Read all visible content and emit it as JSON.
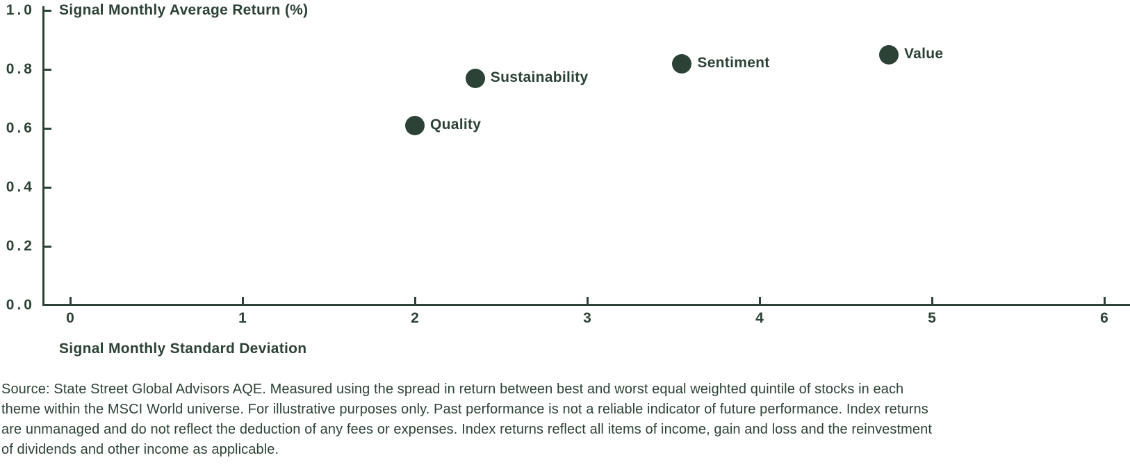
{
  "chart_data": {
    "type": "scatter",
    "title": "",
    "xlabel": "Signal Monthly Standard Deviation",
    "ylabel": "Signal Monthly Average Return (%)",
    "xlim": [
      0,
      6
    ],
    "ylim": [
      0.0,
      1.0
    ],
    "x_ticks": [
      "0",
      "1",
      "2",
      "3",
      "4",
      "5",
      "6"
    ],
    "y_ticks": [
      "0.0",
      "0.2",
      "0.4",
      "0.6",
      "0.8",
      "1.0"
    ],
    "grid": false,
    "legend_position": "none (points labeled inline next to markers)",
    "points": [
      {
        "label": "Quality",
        "x": 2.0,
        "y": 0.61
      },
      {
        "label": "Sustainability",
        "x": 2.35,
        "y": 0.77
      },
      {
        "label": "Sentiment",
        "x": 3.55,
        "y": 0.82
      },
      {
        "label": "Value",
        "x": 4.75,
        "y": 0.85
      }
    ],
    "point_color": "#2C4236"
  },
  "colors": {
    "ink": "#2C4236",
    "background": "#FFFFFF"
  },
  "source": {
    "lines": [
      "Source: State Street Global Advisors AQE. Measured using the spread in return between best and worst equal weighted quintile of stocks in each",
      "theme within the MSCI World universe. For illustrative purposes only. Past performance is not a reliable indicator of future performance. Index returns",
      "are unmanaged and do not reflect the deduction of any fees or expenses. Index returns reflect all items of income, gain and loss and the reinvestment",
      "of dividends and other income as applicable."
    ]
  }
}
